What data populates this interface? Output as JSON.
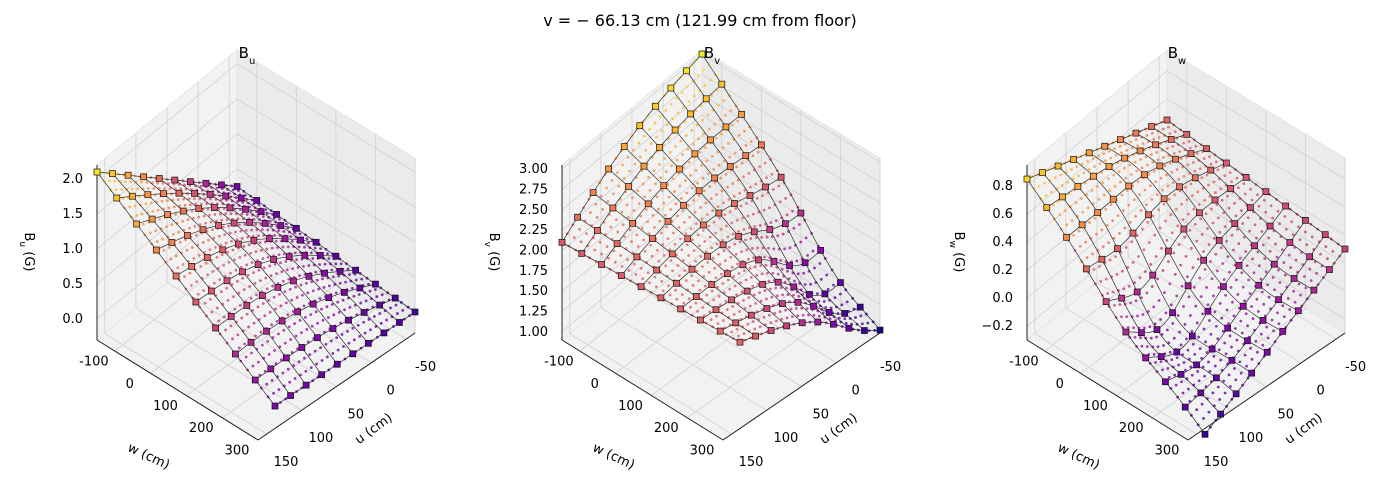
{
  "figure": {
    "suptitle_prefix": "v = ",
    "suptitle_value": "− 66.13",
    "suptitle_suffix": " cm (121.99 cm from floor)"
  },
  "chart_data": [
    {
      "type": "surface3d",
      "title_base": "B",
      "title_sub": "u",
      "zlabel_base": "B",
      "zlabel_sub": "u",
      "zlabel_unit": " (G)",
      "xlabel": "u (cm)",
      "ylabel": "w (cm)",
      "x_ticks": [
        "-50",
        "0",
        "50",
        "100",
        "150"
      ],
      "y_ticks": [
        "-100",
        "0",
        "100",
        "200",
        "300"
      ],
      "z_ticks": [
        "0.0",
        "0.5",
        "1.0",
        "1.5",
        "2.0"
      ],
      "u_range": [
        -75,
        150
      ],
      "w_range": [
        -125,
        325
      ],
      "z_range": [
        -0.3,
        2.2
      ],
      "colormap": "plasma",
      "corner_values": {
        "u_min_w_min": 0.25,
        "u_max_w_min": 0.0,
        "u_min_w_max": 2.1,
        "u_max_w_max": 0.3
      }
    },
    {
      "type": "surface3d",
      "title_base": "B",
      "title_sub": "v",
      "zlabel_base": "B",
      "zlabel_sub": "v",
      "zlabel_unit": " (G)",
      "xlabel": "u (cm)",
      "ylabel": "w (cm)",
      "x_ticks": [
        "-50",
        "0",
        "50",
        "100",
        "150"
      ],
      "y_ticks": [
        "-100",
        "0",
        "100",
        "200",
        "300"
      ],
      "z_ticks": [
        "1.00",
        "1.25",
        "1.50",
        "1.75",
        "2.00",
        "2.25",
        "2.50",
        "2.75",
        "3.00"
      ],
      "u_range": [
        -75,
        150
      ],
      "w_range": [
        -125,
        325
      ],
      "z_range": [
        0.9,
        3.05
      ],
      "colormap": "plasma",
      "corner_values": {
        "u_min_w_min": 3.0,
        "u_max_w_min": 1.0,
        "u_min_w_max": 2.1,
        "u_max_w_max": 2.2
      }
    },
    {
      "type": "surface3d",
      "title_base": "B",
      "title_sub": "w",
      "zlabel_base": "B",
      "zlabel_sub": "w",
      "zlabel_unit": " (G)",
      "xlabel": "u (cm)",
      "ylabel": "w (cm)",
      "x_ticks": [
        "-50",
        "0",
        "50",
        "100",
        "150"
      ],
      "y_ticks": [
        "-100",
        "0",
        "100",
        "200",
        "300"
      ],
      "z_ticks": [
        "−0.2",
        "0.0",
        "0.2",
        "0.4",
        "0.6",
        "0.8"
      ],
      "u_range": [
        -75,
        150
      ],
      "w_range": [
        -125,
        325
      ],
      "z_range": [
        -0.3,
        0.95
      ],
      "colormap": "plasma",
      "corner_values": {
        "u_min_w_min": 0.45,
        "u_max_w_min": 0.3,
        "u_min_w_max": 0.85,
        "u_max_w_max": -0.2
      }
    }
  ]
}
